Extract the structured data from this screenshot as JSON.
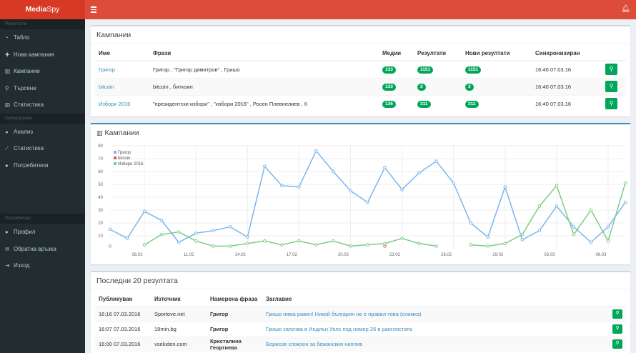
{
  "brand": {
    "part1": "Media",
    "part2": "Spy"
  },
  "sidebar": {
    "section1": "Резултати",
    "items1": [
      {
        "icon": "dashboard-icon",
        "glyph": "◔",
        "label": "Табло"
      },
      {
        "icon": "plus-icon",
        "glyph": "✚",
        "label": "Нова кампания"
      },
      {
        "icon": "chart-icon",
        "glyph": "▥",
        "label": "Кампании"
      },
      {
        "icon": "search-icon",
        "glyph": "⚲",
        "label": "Търсене"
      },
      {
        "icon": "chart-icon",
        "glyph": "▥",
        "label": "Статистика"
      }
    ],
    "section2": "Суперадмин",
    "items2": [
      {
        "icon": "pie-icon",
        "glyph": "◕",
        "label": "Анализ"
      },
      {
        "icon": "line-chart-icon",
        "glyph": "⟋",
        "label": "Статистика"
      },
      {
        "icon": "user-icon",
        "glyph": "●",
        "label": "Потребители"
      }
    ],
    "section3": "Потребител",
    "items3": [
      {
        "icon": "user-circle-icon",
        "glyph": "●",
        "label": "Профил"
      },
      {
        "icon": "envelope-icon",
        "glyph": "✉",
        "label": "Обратна връзка"
      },
      {
        "icon": "logout-icon",
        "glyph": "⇥",
        "label": "Изход"
      }
    ]
  },
  "campaigns": {
    "title": "Кампании",
    "headers": [
      "Име",
      "Фрази",
      "Медии",
      "Резултати",
      "Нови резултати",
      "Синхронизиран"
    ],
    "rows": [
      {
        "name": "Григор",
        "phrases": "Григор , \"Григор димитров\" , Гришо",
        "media": "133",
        "results": "1151",
        "new_results": "1151",
        "synced": "16:40 07.03.16"
      },
      {
        "name": "bitcoin",
        "phrases": "bitcoin , биткоин",
        "media": "133",
        "results": "3",
        "new_results": "3",
        "synced": "16:40 07.03.16"
      },
      {
        "name": "Избори 2016",
        "phrases": "\"президентски избори\" , \"избори 2016\" , Росен Плевнелиев , К",
        "media": "136",
        "results": "311",
        "new_results": "311",
        "synced": "16:40 07.03.16"
      }
    ]
  },
  "chart_box": {
    "title": "Кампании"
  },
  "chart_data": {
    "type": "line",
    "x_labels": [
      "08.02",
      "11.02",
      "14.02",
      "17.02",
      "20.02",
      "23.02",
      "26.02",
      "29.02",
      "03.03",
      "06.03"
    ],
    "y_ticks": [
      10,
      20,
      30,
      40,
      50,
      60,
      70,
      80
    ],
    "ylim": [
      0,
      80
    ],
    "series": [
      {
        "name": "Григор",
        "color": "#7cb5ec",
        "values": [
          15,
          8,
          29,
          22,
          5,
          12,
          14,
          17,
          9,
          64,
          49,
          48,
          76,
          60,
          45,
          36,
          63,
          46,
          59,
          68,
          51,
          20,
          9,
          48,
          7,
          14,
          33,
          17,
          5,
          17,
          36
        ]
      },
      {
        "name": "bitcoin",
        "color": "#e25555",
        "values": [
          null,
          null,
          null,
          null,
          null,
          null,
          null,
          null,
          null,
          null,
          null,
          null,
          null,
          null,
          null,
          null,
          2,
          null,
          null,
          null,
          null,
          null,
          null,
          null,
          null,
          null,
          null,
          null,
          null,
          null,
          null
        ]
      },
      {
        "name": "Избори 2016",
        "color": "#7dcb86",
        "values": [
          2,
          null,
          3,
          11,
          13,
          6,
          2,
          2,
          4,
          6,
          3,
          6,
          3,
          6,
          2,
          3,
          4,
          8,
          4,
          2,
          null,
          3,
          2,
          4,
          11,
          33,
          49,
          11,
          30,
          6,
          51
        ]
      }
    ]
  },
  "results": {
    "title": "Последни 20 резултата",
    "headers": [
      "Публикуван",
      "Източник",
      "Намерена фраза",
      "Заглавие"
    ],
    "rows": [
      {
        "published": "16:16 07.03.2016",
        "source": "Sportove.net",
        "phrase": "Григор",
        "title": "Гришо няма равен! Никой българин не е правил това (снимка)"
      },
      {
        "published": "16:07 07.03.2016",
        "source": "19min.bg",
        "phrase": "Григор",
        "title": "Гришо започва в Индиън Уелс под номер 26 в ранглистата"
      },
      {
        "published": "16:00 07.03.2016",
        "source": "vsekiden.com",
        "phrase": "Кристалина Георгиева",
        "title": "Борисов спокоен за бежанския наплив"
      }
    ]
  }
}
